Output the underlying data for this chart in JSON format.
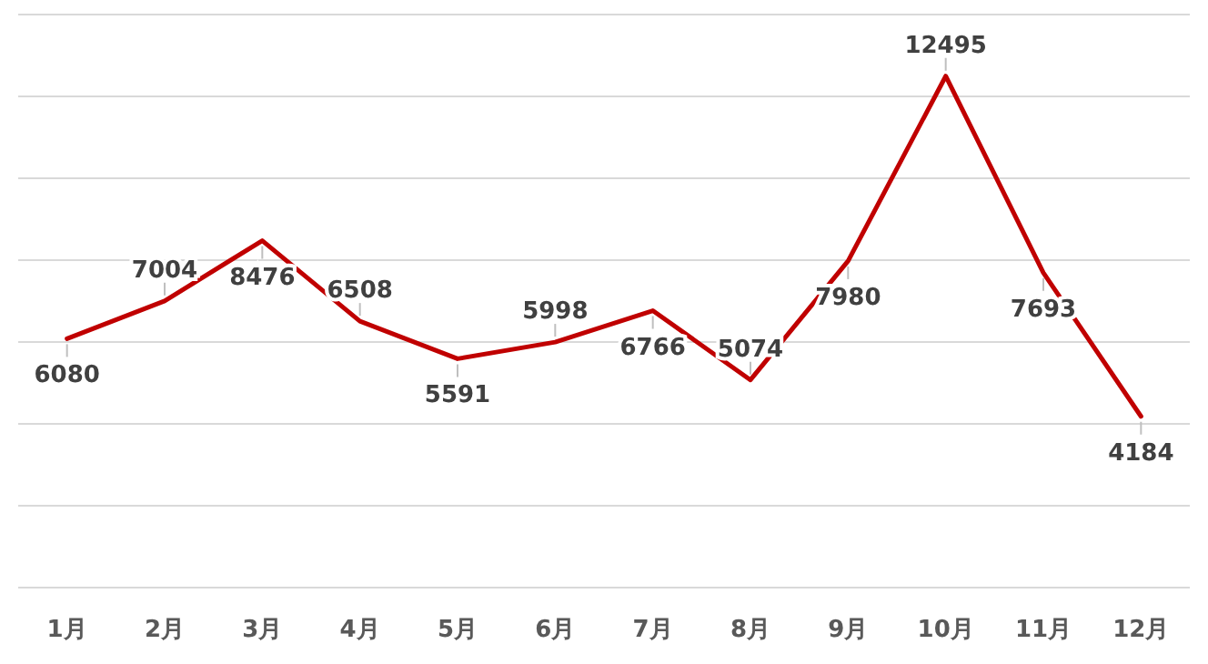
{
  "chart_data": {
    "type": "line",
    "categories": [
      "1月",
      "2月",
      "3月",
      "4月",
      "5月",
      "6月",
      "7月",
      "8月",
      "9月",
      "10月",
      "11月",
      "12月"
    ],
    "series": [
      {
        "color": "#c00000",
        "values": [
          6080,
          7004,
          8476,
          6508,
          5591,
          5998,
          6766,
          5074,
          7980,
          12495,
          7693,
          4184
        ]
      }
    ],
    "ylim": [
      0,
      14000
    ],
    "yticks": [
      {
        "value": 0,
        "label": null
      },
      {
        "value": 2000,
        "label": null
      },
      {
        "value": 4000,
        "label": null
      },
      {
        "value": 6000,
        "label": null
      },
      {
        "value": 8000,
        "label": null
      },
      {
        "value": 10000,
        "label": null
      },
      {
        "value": 12000,
        "label": null
      },
      {
        "value": 14000,
        "label": null
      }
    ],
    "grid": "y",
    "tick_labels": "x",
    "data_labels": true,
    "marker": "none",
    "line_style": "solid"
  }
}
